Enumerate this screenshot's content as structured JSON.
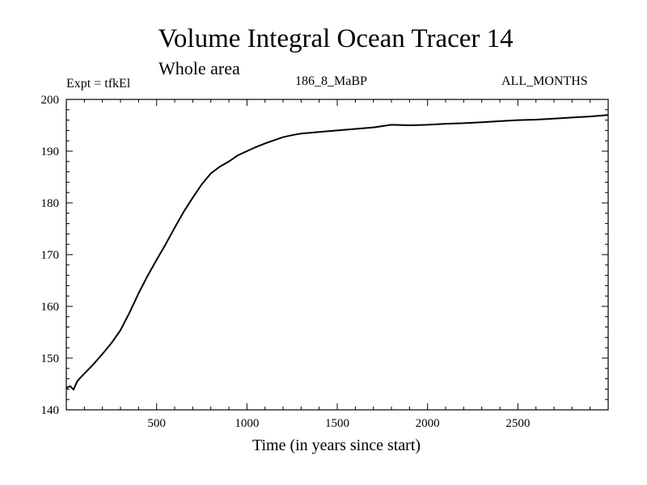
{
  "chart_data": {
    "type": "line",
    "title": "Volume Integral Ocean Tracer 14",
    "subtitle": "Whole area",
    "annotations": {
      "experiment": "Expt = tfkEl",
      "run": "186_8_MaBP",
      "season": "ALL_MONTHS"
    },
    "xlabel": "Time (in years since start)",
    "ylabel": "",
    "xlim": [
      0,
      3000
    ],
    "ylim": [
      140,
      200
    ],
    "xticks": [
      500,
      1000,
      1500,
      2000,
      2500
    ],
    "yticks": [
      140,
      150,
      160,
      170,
      180,
      190,
      200
    ],
    "grid": false,
    "line_color": "#000000",
    "series": [
      {
        "x": [
          0,
          20,
          40,
          60,
          80,
          100,
          150,
          200,
          250,
          300,
          350,
          400,
          450,
          500,
          550,
          600,
          650,
          700,
          750,
          800,
          850,
          900,
          950,
          1000,
          1050,
          1100,
          1150,
          1200,
          1250,
          1300,
          1400,
          1500,
          1600,
          1700,
          1800,
          1900,
          2000,
          2100,
          2200,
          2300,
          2400,
          2500,
          2600,
          2700,
          2800,
          2900,
          3000
        ],
        "y": [
          144.2,
          144.6,
          143.9,
          145.5,
          146.3,
          147.0,
          148.8,
          150.8,
          152.9,
          155.4,
          158.8,
          162.5,
          165.9,
          169.0,
          172.0,
          175.2,
          178.3,
          181.0,
          183.6,
          185.7,
          187.0,
          188.0,
          189.2,
          190.0,
          190.8,
          191.5,
          192.1,
          192.7,
          193.1,
          193.4,
          193.7,
          194.0,
          194.3,
          194.6,
          195.1,
          195.0,
          195.1,
          195.3,
          195.4,
          195.6,
          195.8,
          196.0,
          196.1,
          196.3,
          196.5,
          196.7,
          197.0
        ]
      }
    ]
  }
}
